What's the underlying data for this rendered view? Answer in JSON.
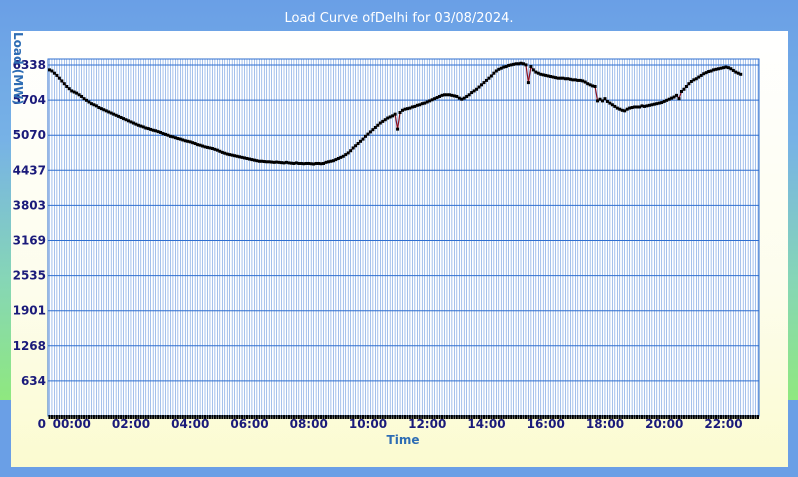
{
  "chart_data": {
    "type": "line",
    "title": "Load Curve ofDelhi for 03/08/2024.",
    "xlabel": "Time",
    "ylabel": "Load (MW)",
    "y_origin_label": "0",
    "yticks": [
      634,
      1268,
      1901,
      2535,
      3169,
      3803,
      4437,
      5070,
      5704,
      6338
    ],
    "xticks": [
      "00:00",
      "02:00",
      "04:00",
      "06:00",
      "08:00",
      "10:00",
      "12:00",
      "14:00",
      "16:00",
      "18:00",
      "20:00",
      "22:00"
    ],
    "xlim_hours": [
      -0.8,
      23.2
    ],
    "ylim": [
      0,
      6338
    ],
    "grid": true,
    "colors": {
      "plot_background": "#ffffff",
      "minor_grid": "#4f86d8",
      "major_grid": "#2f6fd0",
      "line": "#8a1020",
      "marker": "#000000",
      "tick_text": "#1a1a7a",
      "axis_label": "#2e6db4"
    },
    "points_per_hour": 12,
    "series": [
      {
        "name": "",
        "x_start_hours": -0.75,
        "values": [
          6250,
          6230,
          6190,
          6150,
          6100,
          6050,
          6000,
          5950,
          5910,
          5870,
          5850,
          5830,
          5800,
          5770,
          5730,
          5700,
          5670,
          5640,
          5620,
          5600,
          5570,
          5550,
          5530,
          5510,
          5490,
          5470,
          5450,
          5430,
          5410,
          5390,
          5370,
          5350,
          5330,
          5310,
          5290,
          5270,
          5250,
          5235,
          5220,
          5200,
          5190,
          5175,
          5160,
          5150,
          5135,
          5120,
          5100,
          5085,
          5070,
          5050,
          5040,
          5025,
          5010,
          5000,
          4985,
          4970,
          4960,
          4950,
          4935,
          4920,
          4900,
          4890,
          4875,
          4860,
          4850,
          4840,
          4830,
          4815,
          4800,
          4780,
          4760,
          4745,
          4730,
          4720,
          4710,
          4700,
          4690,
          4680,
          4670,
          4660,
          4650,
          4640,
          4630,
          4620,
          4610,
          4600,
          4600,
          4595,
          4590,
          4590,
          4585,
          4580,
          4585,
          4580,
          4575,
          4570,
          4580,
          4570,
          4565,
          4560,
          4570,
          4560,
          4560,
          4555,
          4560,
          4560,
          4555,
          4550,
          4560,
          4560,
          4555,
          4560,
          4580,
          4590,
          4600,
          4610,
          4630,
          4650,
          4670,
          4690,
          4720,
          4750,
          4790,
          4840,
          4880,
          4920,
          4960,
          5000,
          5050,
          5090,
          5130,
          5170,
          5210,
          5250,
          5290,
          5320,
          5350,
          5380,
          5400,
          5420,
          5450,
          5180,
          5480,
          5520,
          5540,
          5550,
          5560,
          5580,
          5590,
          5610,
          5620,
          5640,
          5650,
          5670,
          5690,
          5710,
          5730,
          5750,
          5770,
          5790,
          5800,
          5800,
          5800,
          5790,
          5780,
          5770,
          5740,
          5720,
          5740,
          5770,
          5800,
          5840,
          5870,
          5900,
          5940,
          5980,
          6020,
          6060,
          6100,
          6140,
          6190,
          6230,
          6260,
          6280,
          6300,
          6310,
          6330,
          6340,
          6350,
          6360,
          6360,
          6370,
          6360,
          6340,
          6020,
          6310,
          6250,
          6210,
          6190,
          6170,
          6160,
          6150,
          6140,
          6130,
          6120,
          6110,
          6100,
          6100,
          6100,
          6090,
          6090,
          6080,
          6070,
          6070,
          6060,
          6060,
          6050,
          6030,
          6000,
          5980,
          5960,
          5950,
          5690,
          5720,
          5690,
          5730,
          5680,
          5650,
          5620,
          5590,
          5560,
          5540,
          5520,
          5510,
          5540,
          5560,
          5570,
          5580,
          5580,
          5580,
          5600,
          5590,
          5600,
          5610,
          5620,
          5630,
          5640,
          5650,
          5660,
          5680,
          5700,
          5720,
          5740,
          5760,
          5790,
          5730,
          5860,
          5900,
          5950,
          6000,
          6040,
          6070,
          6090,
          6120,
          6150,
          6180,
          6200,
          6220,
          6230,
          6250,
          6260,
          6270,
          6280,
          6290,
          6300,
          6290,
          6270,
          6240,
          6210,
          6190,
          6170
        ]
      }
    ]
  }
}
